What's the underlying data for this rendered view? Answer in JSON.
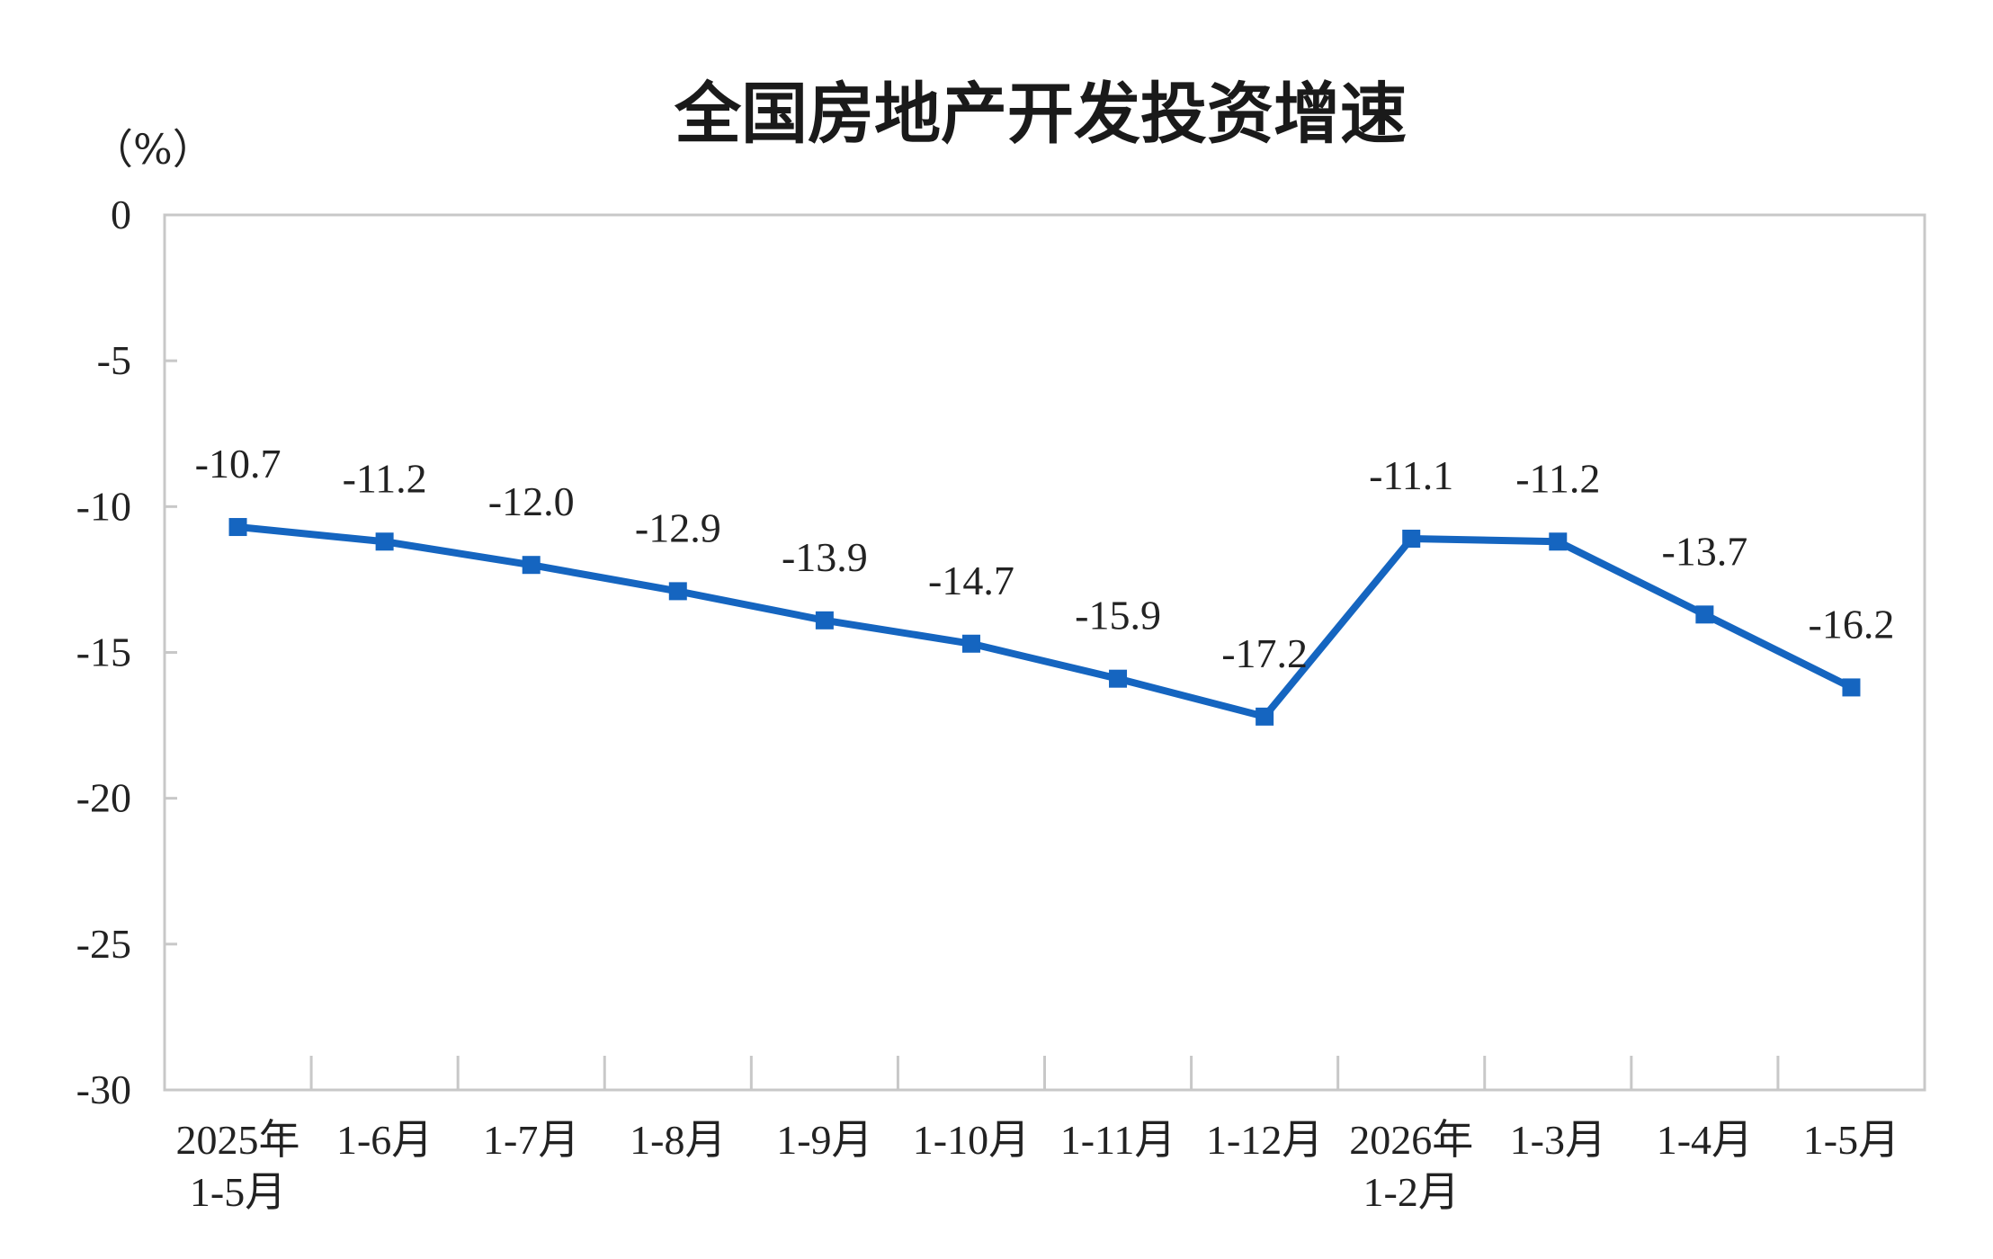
{
  "chart_data": {
    "type": "line",
    "title": "全国房地产开发投资增速",
    "ylabel": "（%）",
    "ylim": [
      -30,
      0
    ],
    "yticks": [
      0,
      -5,
      -10,
      -15,
      -20,
      -25,
      -30
    ],
    "grid": false,
    "categories": [
      [
        "2025年",
        "1-5月"
      ],
      [
        "1-6月"
      ],
      [
        "1-7月"
      ],
      [
        "1-8月"
      ],
      [
        "1-9月"
      ],
      [
        "1-10月"
      ],
      [
        "1-11月"
      ],
      [
        "1-12月"
      ],
      [
        "2026年",
        "1-2月"
      ],
      [
        "1-3月"
      ],
      [
        "1-4月"
      ],
      [
        "1-5月"
      ]
    ],
    "series": [
      {
        "values": [
          -10.7,
          -11.2,
          -12.0,
          -12.9,
          -13.9,
          -14.7,
          -15.9,
          -17.2,
          -11.1,
          -11.2,
          -13.7,
          -16.2
        ],
        "labels": [
          "-10.7",
          "-11.2",
          "-12.0",
          "-12.9",
          "-13.9",
          "-14.7",
          "-15.9",
          "-17.2",
          "-11.1",
          "-11.2",
          "-13.7",
          "-16.2"
        ],
        "color": "#1565c0"
      }
    ]
  }
}
